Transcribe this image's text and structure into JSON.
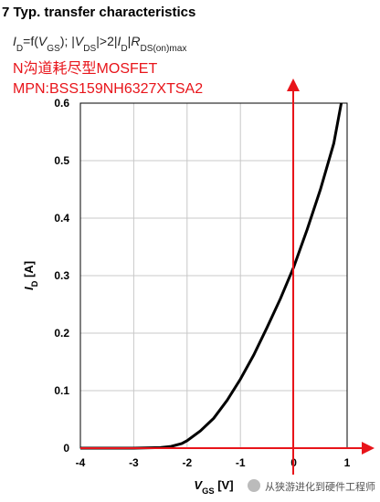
{
  "chart_data": {
    "type": "line",
    "title": "7 Typ. transfer characteristics",
    "subtitle": [
      {
        "text": "I",
        "italic": true
      },
      {
        "text": "D",
        "sub": true
      },
      {
        "text": "=f("
      },
      {
        "text": "V",
        "italic": true
      },
      {
        "text": "GS",
        "sub": true
      },
      {
        "text": "); |"
      },
      {
        "text": "V",
        "italic": true
      },
      {
        "text": "DS",
        "sub": true
      },
      {
        "text": "|>2|"
      },
      {
        "text": "I",
        "italic": true
      },
      {
        "text": "D",
        "sub": true
      },
      {
        "text": "|"
      },
      {
        "text": "R",
        "italic": true
      },
      {
        "text": "DS(on)max",
        "sub": true
      }
    ],
    "annotations": [
      "N沟道耗尽型MOSFET",
      "MPN:BSS159NH6327XTSA2"
    ],
    "watermark": "从狭游进化到硬件工程师",
    "x_label": [
      {
        "text": "V",
        "italic": true
      },
      {
        "text": "GS",
        "sub": true
      },
      {
        "text": " [V]"
      }
    ],
    "y_label": [
      {
        "text": "I",
        "italic": true
      },
      {
        "text": "D",
        "sub": true
      },
      {
        "text": " [A]"
      }
    ],
    "xlim": [
      -4,
      1
    ],
    "ylim": [
      0,
      0.6
    ],
    "xticks": [
      -4,
      -3,
      -2,
      -1,
      0,
      1
    ],
    "yticks": [
      0,
      0.1,
      0.2,
      0.3,
      0.4,
      0.5,
      0.6
    ],
    "grid": true,
    "series": [
      {
        "color": "#000000",
        "x": [
          -4,
          -3,
          -2.5,
          -2.3,
          -2.1,
          -2,
          -1.75,
          -1.5,
          -1.25,
          -1,
          -0.75,
          -0.5,
          -0.25,
          0,
          0.25,
          0.5,
          0.75,
          0.89
        ],
        "values": [
          0,
          0,
          0.001,
          0.003,
          0.008,
          0.013,
          0.03,
          0.052,
          0.083,
          0.12,
          0.162,
          0.21,
          0.26,
          0.315,
          0.38,
          0.45,
          0.53,
          0.6
        ]
      }
    ]
  }
}
